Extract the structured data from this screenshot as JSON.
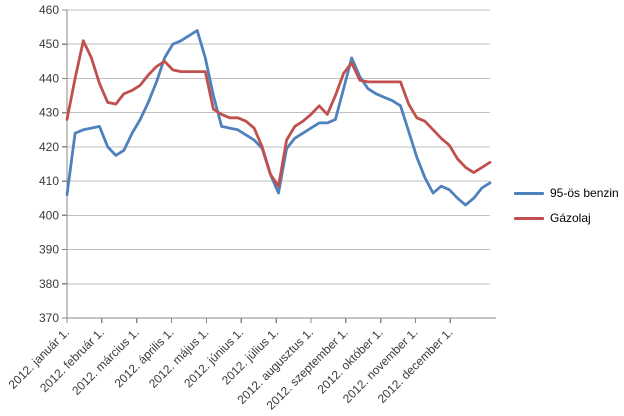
{
  "chart_data": {
    "type": "line",
    "title": "",
    "xlabel": "",
    "ylabel": "",
    "ylim": [
      370,
      460
    ],
    "y_ticks": [
      370,
      380,
      390,
      400,
      410,
      420,
      430,
      440,
      450,
      460
    ],
    "x_tick_labels": [
      "2012. január 1.",
      "2012. február 1.",
      "2012. március 1.",
      "2012. április 1.",
      "2012. május 1.",
      "2012. június 1.",
      "2012. július 1.",
      "2012. augusztus 1.",
      "2012. szeptember 1.",
      "2012. október 1.",
      "2012. november 1.",
      "2012. december 1."
    ],
    "x_unit": "weekly samples, Jan 1 – Dec 30 2012",
    "grid": "horizontal",
    "legend_position": "right",
    "series": [
      {
        "name": "95-ös benzin",
        "color": "#4F81BD",
        "values": [
          406,
          424,
          425,
          425.5,
          426,
          420,
          417.5,
          419,
          424,
          428,
          433,
          439,
          446,
          450,
          451,
          452.5,
          454,
          446,
          435,
          426,
          425.5,
          425,
          423.5,
          422,
          419.5,
          412,
          406.5,
          419.5,
          422.5,
          424,
          425.5,
          427,
          427,
          428,
          437,
          446,
          440.5,
          437,
          435.5,
          434.5,
          433.5,
          432,
          424.5,
          417,
          411,
          406.5,
          408.5,
          407.5,
          405,
          403,
          405,
          408,
          409.5
        ]
      },
      {
        "name": "Gázolaj",
        "color": "#C0504D",
        "values": [
          428,
          440,
          451,
          446,
          438.5,
          433,
          432.5,
          435.5,
          436.5,
          438,
          441,
          443.5,
          445,
          442.5,
          442,
          442,
          442,
          442,
          431,
          429.5,
          428.5,
          428.5,
          427.5,
          425.5,
          420,
          412,
          408.5,
          422,
          426,
          427.5,
          429.5,
          432,
          429.5,
          435,
          441.5,
          444.5,
          439.5,
          439,
          439,
          439,
          439,
          439,
          432.5,
          428.5,
          427.5,
          425,
          422.5,
          420.5,
          416.5,
          414,
          412.5,
          414,
          415.5
        ]
      }
    ]
  },
  "style": {
    "gridline_color": "#BFBFBF",
    "axis_color": "#898989",
    "tick_label_color": "#3B3B3B",
    "background": "#FFFFFF"
  }
}
